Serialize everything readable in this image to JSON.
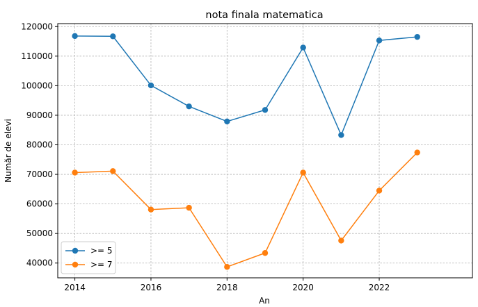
{
  "chart_data": {
    "type": "line",
    "title": "nota finala matematica",
    "xlabel": "An",
    "ylabel": "Număr de elevi",
    "x": [
      2014,
      2015,
      2016,
      2017,
      2018,
      2019,
      2020,
      2021,
      2022,
      2023
    ],
    "xlim": [
      2013.55,
      2024.45
    ],
    "ylim": [
      35000,
      121000
    ],
    "x_ticks": [
      2014,
      2016,
      2018,
      2020,
      2022
    ],
    "y_ticks": [
      40000,
      50000,
      60000,
      70000,
      80000,
      90000,
      100000,
      110000,
      120000
    ],
    "grid": true,
    "legend_position": "lower-left",
    "series": [
      {
        "name": ">= 5",
        "color": "#1f77b4",
        "values": [
          116800,
          116700,
          100100,
          93000,
          87900,
          91800,
          112900,
          83300,
          115300,
          116500
        ]
      },
      {
        "name": ">= 7",
        "color": "#ff7f0e",
        "values": [
          70600,
          71100,
          58100,
          58700,
          38700,
          43400,
          70600,
          47600,
          64500,
          77400
        ]
      }
    ]
  }
}
